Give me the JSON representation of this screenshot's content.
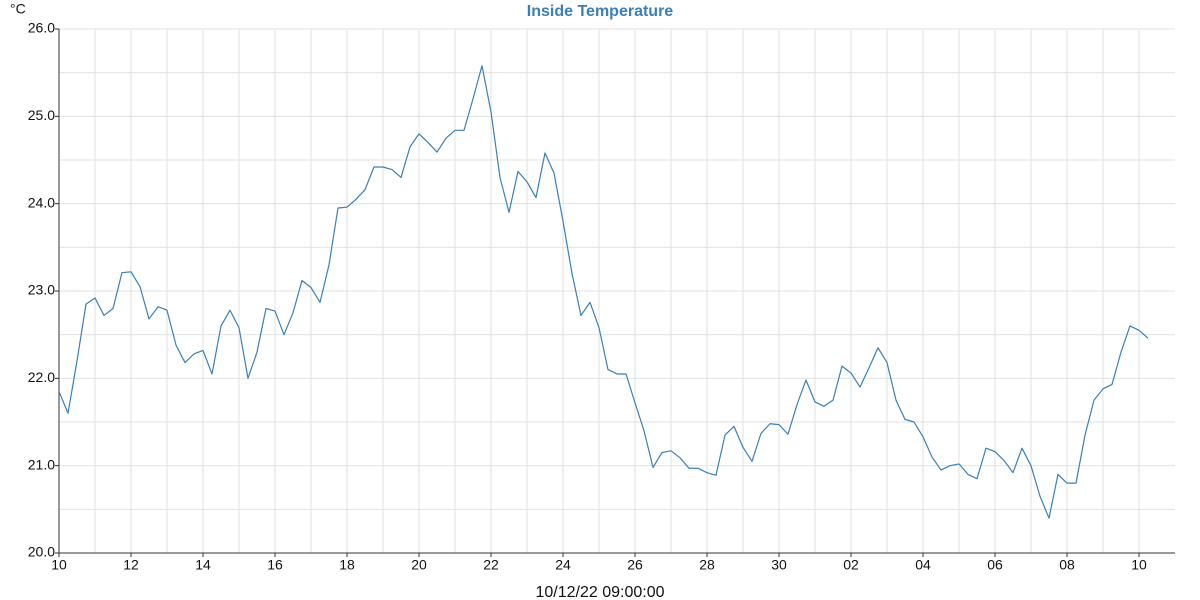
{
  "chart_data": {
    "type": "line",
    "title": "Inside Temperature",
    "y_label": "°C",
    "x_label": "10/12/22 09:00:00",
    "categories": [
      "10",
      null,
      null,
      null,
      null,
      null,
      null,
      null,
      "12",
      null,
      null,
      null,
      null,
      null,
      null,
      null,
      "14",
      null,
      null,
      null,
      null,
      null,
      null,
      null,
      "16",
      null,
      null,
      null,
      null,
      null,
      null,
      null,
      "18",
      null,
      null,
      null,
      null,
      null,
      null,
      null,
      "20",
      null,
      null,
      null,
      null,
      null,
      null,
      null,
      "22",
      null,
      null,
      null,
      null,
      null,
      null,
      null,
      "24",
      null,
      null,
      null,
      null,
      null,
      null,
      null,
      "26",
      null,
      null,
      null,
      null,
      null,
      null,
      null,
      "28",
      null,
      null,
      null,
      null,
      null,
      null,
      null,
      "30",
      null,
      null,
      null,
      null,
      null,
      null,
      null,
      "02",
      null,
      null,
      null,
      null,
      null,
      null,
      null,
      "04",
      null,
      null,
      null,
      null,
      null,
      null,
      null,
      "06",
      null,
      null,
      null,
      null,
      null,
      null,
      null,
      "08",
      null,
      null,
      null,
      null,
      null,
      null,
      null,
      "10",
      null
    ],
    "series": [
      {
        "name": "Inside Temperature",
        "color": "#3a7fb7",
        "values": [
          21.85,
          21.6,
          22.2,
          22.85,
          22.92,
          22.72,
          22.8,
          23.21,
          23.22,
          23.05,
          22.68,
          22.82,
          22.78,
          22.38,
          22.18,
          22.28,
          22.32,
          22.05,
          22.6,
          22.78,
          22.58,
          22.0,
          22.3,
          22.8,
          22.77,
          22.5,
          22.75,
          23.12,
          23.04,
          22.87,
          23.3,
          23.95,
          23.96,
          24.05,
          24.16,
          24.42,
          24.42,
          24.39,
          24.3,
          24.65,
          24.8,
          24.7,
          24.59,
          24.75,
          24.84,
          24.84,
          25.2,
          25.58,
          25.05,
          24.3,
          23.9,
          24.37,
          24.25,
          24.07,
          24.58,
          24.35,
          23.8,
          23.2,
          22.72,
          22.87,
          22.58,
          22.1,
          22.05,
          22.05,
          21.72,
          21.4,
          20.98,
          21.15,
          21.17,
          21.09,
          20.97,
          20.97,
          20.92,
          20.89,
          21.35,
          21.45,
          21.21,
          21.05,
          21.37,
          21.48,
          21.47,
          21.36,
          21.7,
          21.98,
          21.73,
          21.68,
          21.75,
          22.14,
          22.06,
          21.9,
          22.12,
          22.35,
          22.18,
          21.75,
          21.53,
          21.5,
          21.33,
          21.1,
          20.95,
          21.0,
          21.02,
          20.9,
          20.85,
          21.2,
          21.16,
          21.06,
          20.92,
          21.2,
          21.0,
          20.65,
          20.4,
          20.9,
          20.8,
          20.8,
          21.35,
          21.75,
          21.88,
          21.93,
          22.3,
          22.6,
          22.55,
          22.46
        ]
      }
    ],
    "ylim": [
      20,
      26
    ],
    "yticks": [
      {
        "value": 20,
        "label": "20.0"
      },
      {
        "value": 21,
        "label": "21.0"
      },
      {
        "value": 22,
        "label": "22.0"
      },
      {
        "value": 23,
        "label": "23.0"
      },
      {
        "value": 24,
        "label": "24.0"
      },
      {
        "value": 25,
        "label": "25.0"
      },
      {
        "value": 26,
        "label": "26.0"
      }
    ],
    "grid": true,
    "minor_grid": true
  }
}
